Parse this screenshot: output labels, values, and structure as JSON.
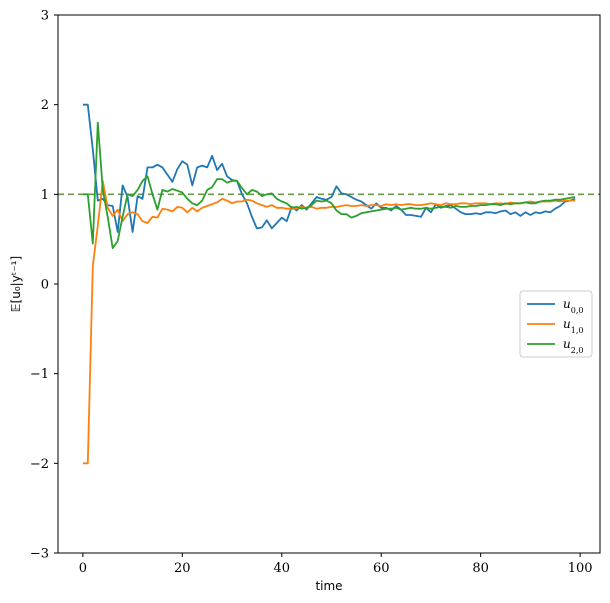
{
  "chart_data": {
    "type": "line",
    "xlabel": "time",
    "ylabel": "𝔼[u₀|yᵗ⁻¹]",
    "xlim": [
      -5,
      104
    ],
    "ylim": [
      -3,
      3
    ],
    "xticks": [
      0,
      20,
      40,
      60,
      80,
      100
    ],
    "yticks": [
      -3,
      -2,
      -1,
      0,
      1,
      2,
      3
    ],
    "xtick_labels": [
      "0",
      "20",
      "40",
      "60",
      "80",
      "100"
    ],
    "ytick_labels": [
      "−3",
      "−2",
      "−1",
      "0",
      "1",
      "2",
      "3"
    ],
    "grid": false,
    "legend_position": "center-right",
    "reference_line": {
      "y": 1,
      "style": "dashed",
      "color": "#6a9a4a"
    },
    "series": [
      {
        "name": "u0,0",
        "label_base": "u",
        "label_sub": "0,0",
        "color": "#1f77b4",
        "x": [
          0,
          1,
          2,
          3,
          4,
          5,
          6,
          7,
          8,
          9,
          10,
          11,
          12,
          13,
          14,
          15,
          16,
          17,
          18,
          19,
          20,
          21,
          22,
          23,
          24,
          25,
          26,
          27,
          28,
          29,
          30,
          31,
          32,
          33,
          34,
          35,
          36,
          37,
          38,
          39,
          40,
          41,
          42,
          43,
          44,
          45,
          46,
          47,
          48,
          49,
          50,
          51,
          52,
          53,
          54,
          55,
          56,
          57,
          58,
          59,
          60,
          61,
          62,
          63,
          64,
          65,
          66,
          67,
          68,
          69,
          70,
          71,
          72,
          73,
          74,
          75,
          76,
          77,
          78,
          79,
          80,
          81,
          82,
          83,
          84,
          85,
          86,
          87,
          88,
          89,
          90,
          91,
          92,
          93,
          94,
          95,
          96,
          97,
          98,
          99
        ],
        "y": [
          2.0,
          2.0,
          1.5,
          0.93,
          0.95,
          0.88,
          0.87,
          0.58,
          1.1,
          0.97,
          0.58,
          0.98,
          0.95,
          1.3,
          1.3,
          1.33,
          1.3,
          1.22,
          1.14,
          1.28,
          1.37,
          1.33,
          1.1,
          1.3,
          1.32,
          1.3,
          1.43,
          1.27,
          1.34,
          1.2,
          1.16,
          1.15,
          1.0,
          0.9,
          0.75,
          0.62,
          0.63,
          0.71,
          0.62,
          0.68,
          0.74,
          0.7,
          0.86,
          0.82,
          0.88,
          0.83,
          0.9,
          0.97,
          0.95,
          0.94,
          0.97,
          1.09,
          1.01,
          1.0,
          0.97,
          0.94,
          0.92,
          0.88,
          0.84,
          0.9,
          0.85,
          0.85,
          0.82,
          0.87,
          0.83,
          0.77,
          0.77,
          0.76,
          0.75,
          0.85,
          0.8,
          0.89,
          0.85,
          0.87,
          0.88,
          0.84,
          0.8,
          0.78,
          0.78,
          0.79,
          0.78,
          0.8,
          0.8,
          0.79,
          0.81,
          0.82,
          0.78,
          0.8,
          0.76,
          0.8,
          0.77,
          0.8,
          0.79,
          0.81,
          0.8,
          0.84,
          0.87,
          0.92,
          0.93,
          0.95
        ]
      },
      {
        "name": "u1,0",
        "label_base": "u",
        "label_sub": "1,0",
        "color": "#ff7f0e",
        "x": [
          0,
          1,
          2,
          3,
          4,
          5,
          6,
          7,
          8,
          9,
          10,
          11,
          12,
          13,
          14,
          15,
          16,
          17,
          18,
          19,
          20,
          21,
          22,
          23,
          24,
          25,
          26,
          27,
          28,
          29,
          30,
          31,
          32,
          33,
          34,
          35,
          36,
          37,
          38,
          39,
          40,
          41,
          42,
          43,
          44,
          45,
          46,
          47,
          48,
          49,
          50,
          51,
          52,
          53,
          54,
          55,
          56,
          57,
          58,
          59,
          60,
          61,
          62,
          63,
          64,
          65,
          66,
          67,
          68,
          69,
          70,
          71,
          72,
          73,
          74,
          75,
          76,
          77,
          78,
          79,
          80,
          81,
          82,
          83,
          84,
          85,
          86,
          87,
          88,
          89,
          90,
          91,
          92,
          93,
          94,
          95,
          96,
          97,
          98,
          99
        ],
        "y": [
          -2.0,
          -2.0,
          0.2,
          0.65,
          1.15,
          0.85,
          0.76,
          0.83,
          0.7,
          0.78,
          0.8,
          0.78,
          0.7,
          0.68,
          0.75,
          0.74,
          0.84,
          0.83,
          0.81,
          0.86,
          0.85,
          0.8,
          0.85,
          0.81,
          0.85,
          0.87,
          0.89,
          0.91,
          0.95,
          0.93,
          0.9,
          0.92,
          0.92,
          0.94,
          0.93,
          0.9,
          0.88,
          0.86,
          0.88,
          0.85,
          0.85,
          0.84,
          0.84,
          0.84,
          0.86,
          0.85,
          0.86,
          0.84,
          0.85,
          0.85,
          0.86,
          0.86,
          0.87,
          0.88,
          0.87,
          0.87,
          0.88,
          0.87,
          0.88,
          0.88,
          0.87,
          0.89,
          0.88,
          0.89,
          0.88,
          0.89,
          0.89,
          0.88,
          0.88,
          0.89,
          0.9,
          0.89,
          0.88,
          0.9,
          0.89,
          0.89,
          0.9,
          0.9,
          0.89,
          0.9,
          0.9,
          0.9,
          0.89,
          0.9,
          0.9,
          0.89,
          0.91,
          0.9,
          0.9,
          0.91,
          0.92,
          0.91,
          0.92,
          0.92,
          0.92,
          0.93,
          0.92,
          0.93,
          0.93,
          0.93
        ]
      },
      {
        "name": "u2,0",
        "label_base": "u",
        "label_sub": "2,0",
        "color": "#2ca02c",
        "x": [
          0,
          1,
          2,
          3,
          4,
          5,
          6,
          7,
          8,
          9,
          10,
          11,
          12,
          13,
          14,
          15,
          16,
          17,
          18,
          19,
          20,
          21,
          22,
          23,
          24,
          25,
          26,
          27,
          28,
          29,
          30,
          31,
          32,
          33,
          34,
          35,
          36,
          37,
          38,
          39,
          40,
          41,
          42,
          43,
          44,
          45,
          46,
          47,
          48,
          49,
          50,
          51,
          52,
          53,
          54,
          55,
          56,
          57,
          58,
          59,
          60,
          61,
          62,
          63,
          64,
          65,
          66,
          67,
          68,
          69,
          70,
          71,
          72,
          73,
          74,
          75,
          76,
          77,
          78,
          79,
          80,
          81,
          82,
          83,
          84,
          85,
          86,
          87,
          88,
          89,
          90,
          91,
          92,
          93,
          94,
          95,
          96,
          97,
          98,
          99
        ],
        "y": [
          1.0,
          1.0,
          0.45,
          1.8,
          1.05,
          0.75,
          0.4,
          0.48,
          0.75,
          1.0,
          0.98,
          1.05,
          1.15,
          1.2,
          1.0,
          0.83,
          1.05,
          1.03,
          1.06,
          1.04,
          1.02,
          0.95,
          0.9,
          0.88,
          0.93,
          1.05,
          1.08,
          1.17,
          1.17,
          1.13,
          1.15,
          1.15,
          1.07,
          1.0,
          1.05,
          1.03,
          0.98,
          1.0,
          1.01,
          0.95,
          0.92,
          0.9,
          0.85,
          0.86,
          0.84,
          0.85,
          0.88,
          0.93,
          0.92,
          0.93,
          0.9,
          0.82,
          0.78,
          0.78,
          0.74,
          0.76,
          0.79,
          0.8,
          0.81,
          0.82,
          0.83,
          0.84,
          0.84,
          0.85,
          0.83,
          0.84,
          0.85,
          0.84,
          0.84,
          0.85,
          0.84,
          0.85,
          0.86,
          0.86,
          0.85,
          0.87,
          0.86,
          0.86,
          0.87,
          0.87,
          0.88,
          0.88,
          0.89,
          0.89,
          0.88,
          0.9,
          0.89,
          0.9,
          0.9,
          0.91,
          0.9,
          0.9,
          0.92,
          0.93,
          0.93,
          0.94,
          0.94,
          0.95,
          0.96,
          0.97
        ]
      }
    ]
  }
}
